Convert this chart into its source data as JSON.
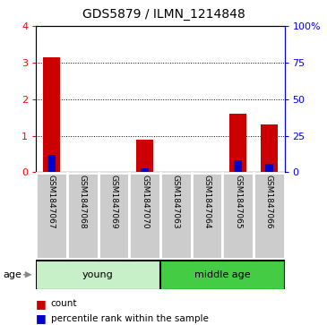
{
  "title": "GDS5879 / ILMN_1214848",
  "samples": [
    "GSM1847067",
    "GSM1847068",
    "GSM1847069",
    "GSM1847070",
    "GSM1847063",
    "GSM1847064",
    "GSM1847065",
    "GSM1847066"
  ],
  "count_values": [
    3.15,
    0.0,
    0.0,
    0.9,
    0.0,
    0.0,
    1.6,
    1.3
  ],
  "percentile_values": [
    12.0,
    0.0,
    0.0,
    2.5,
    0.0,
    0.0,
    8.0,
    6.0
  ],
  "groups": [
    {
      "label": "young",
      "start": 0,
      "end": 4,
      "color": "#c8f0c8"
    },
    {
      "label": "middle age",
      "start": 4,
      "end": 8,
      "color": "#44cc44"
    }
  ],
  "ylim_left": [
    0,
    4
  ],
  "ylim_right": [
    0,
    100
  ],
  "yticks_left": [
    0,
    1,
    2,
    3,
    4
  ],
  "yticks_right": [
    0,
    25,
    50,
    75,
    100
  ],
  "ytick_labels_right": [
    "0",
    "25",
    "50",
    "75",
    "100%"
  ],
  "bar_color_red": "#cc0000",
  "bar_color_blue": "#0000cc",
  "bar_width": 0.55,
  "blue_bar_width": 0.25,
  "background_color": "#ffffff",
  "plot_bg_color": "#ffffff",
  "label_box_color": "#cccccc",
  "age_label": "age",
  "legend_count": "count",
  "legend_percentile": "percentile rank within the sample",
  "group_box_color_young": "#c8f0c8",
  "group_box_color_middle": "#44cc44"
}
